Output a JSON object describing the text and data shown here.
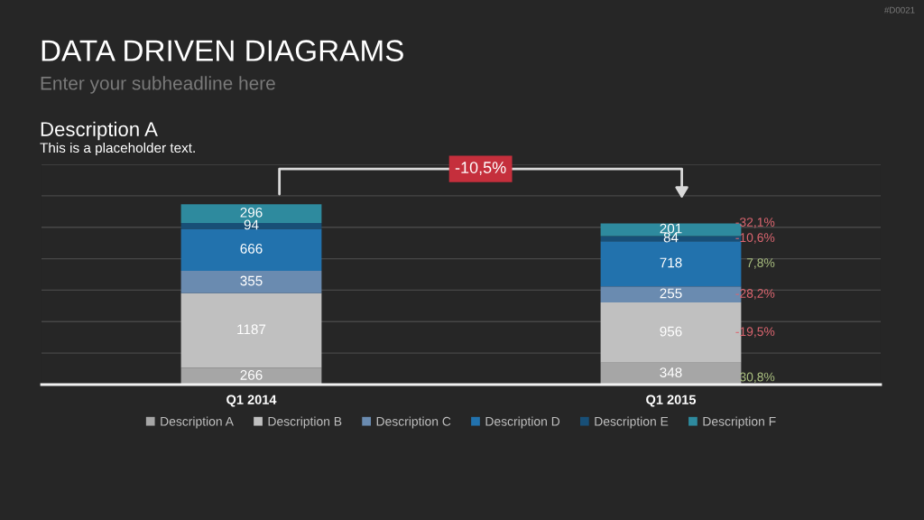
{
  "chart_data": {
    "type": "bar",
    "stacked": true,
    "title": "DATA DRIVEN DIAGRAMS",
    "subtitle": "Enter your subheadline here",
    "categories": [
      "Q1 2014",
      "Q1 2015"
    ],
    "series": [
      {
        "name": "Description A",
        "color": "#a6a6a6",
        "values": [
          266,
          348
        ]
      },
      {
        "name": "Description B",
        "color": "#c0c0c0",
        "values": [
          1187,
          956
        ]
      },
      {
        "name": "Description C",
        "color": "#6a8bb0",
        "values": [
          355,
          255
        ]
      },
      {
        "name": "Description D",
        "color": "#2272ad",
        "values": [
          666,
          718
        ]
      },
      {
        "name": "Description E",
        "color": "#184f77",
        "values": [
          94,
          84
        ]
      },
      {
        "name": "Description F",
        "color": "#2e8a9e",
        "values": [
          296,
          201
        ]
      }
    ],
    "ylim": [
      0,
      3500
    ],
    "yticks": [
      {
        "value": 0,
        "label": null
      },
      {
        "value": 500,
        "label": null
      },
      {
        "value": 1000,
        "label": null
      },
      {
        "value": 1500,
        "label": null
      },
      {
        "value": 2000,
        "label": null
      },
      {
        "value": 2500,
        "label": null
      },
      {
        "value": 3000,
        "label": null
      },
      {
        "value": 3500,
        "label": null
      }
    ],
    "tick_labels": "x",
    "grid": "y",
    "legend": "bottom",
    "data_labels": true,
    "annotations": [
      "#D0021",
      "Description A",
      "This is a placeholder text.",
      "-10,5%",
      "30,8%",
      "-19,5%",
      "-28,2%",
      "7,8%",
      "-10,6%",
      "-32,1%"
    ]
  }
}
